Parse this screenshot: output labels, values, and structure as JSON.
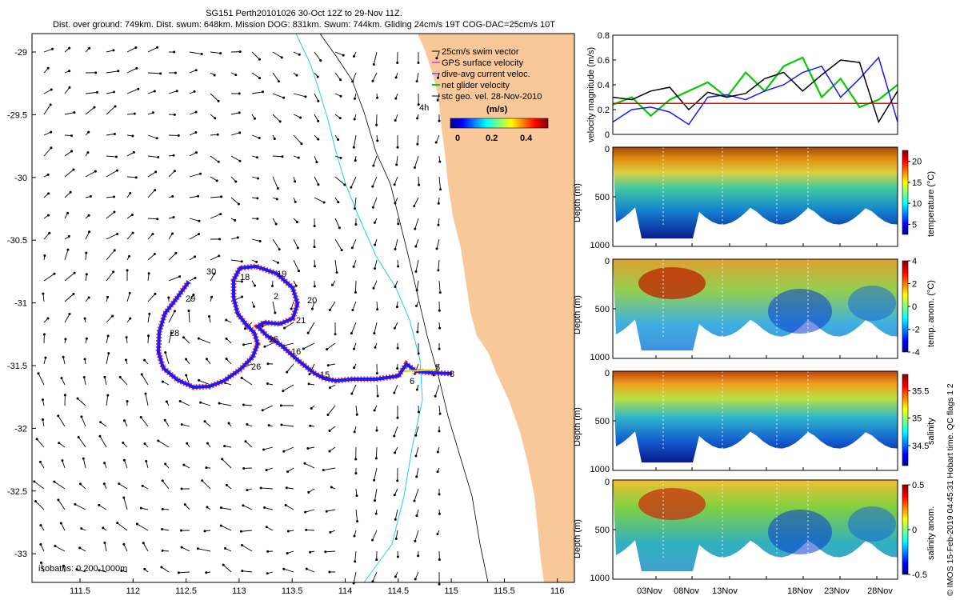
{
  "title": {
    "line1": "SG151 Perth20101026 30-Oct 12Z to 29-Nov 11Z.",
    "line2": "Dist. over ground: 749km. Dist. swum: 648km. Mission DOG: 831km. Swum: 744km. Gliding 24cm/s 19T COG-DAC=25cm/s 10T"
  },
  "colors": {
    "land": "#f9c89a",
    "track_blue": "#1a1aff",
    "track_red": "#ff1e00",
    "iso200": "#1ed2e6",
    "gps": "#b400ff",
    "net": "#00cc00",
    "mean_line": "#ee0000"
  },
  "map": {
    "x_ticks": [
      "111.5",
      "112",
      "112.5",
      "113",
      "113.5",
      "114",
      "114.5",
      "115",
      "115.5",
      "116"
    ],
    "y_ticks": [
      "-29",
      "-29.5",
      "-30",
      "-30.5",
      "-31",
      "-31.5",
      "-32",
      "-32.5",
      "-33"
    ],
    "legend": [
      {
        "symbol": "—",
        "label": "25cm/s swim vector"
      },
      {
        "symbol": "—",
        "label": "GPS surface velocity"
      },
      {
        "symbol": "—",
        "label": "dive-avg current veloc."
      },
      {
        "symbol": "—",
        "label": "net glider velocity"
      },
      {
        "symbol": "—",
        "label": "stc geo. vel. 28-Nov-2010"
      }
    ],
    "legend_extra": "4h",
    "colorbar_title": "(m/s)",
    "colorbar_ticks": [
      "0",
      "0.2",
      "0.4"
    ],
    "isobaths_label": "isobaths: 0   200  1000m",
    "track_labels": [
      "30",
      "18",
      "19",
      "2",
      "20",
      "21",
      "29",
      "28",
      "25",
      "16",
      "26",
      "15",
      "5",
      "6",
      "8"
    ]
  },
  "chart_data": [
    {
      "type": "line",
      "title": "",
      "xlabel": "",
      "ylabel": "velocity magnitude (m/s)",
      "ylim": [
        0,
        0.8
      ],
      "y_ticks": [
        "0",
        "0.2",
        "0.4",
        "0.6",
        "0.8"
      ],
      "x": [
        0,
        2,
        4,
        6,
        8,
        10,
        12,
        14,
        16,
        18,
        20,
        22,
        24,
        26,
        28,
        30
      ],
      "series": [
        {
          "name": "net glider velocity",
          "values": [
            0.24,
            0.3,
            0.15,
            0.28,
            0.35,
            0.42,
            0.3,
            0.5,
            0.35,
            0.55,
            0.62,
            0.3,
            0.45,
            0.22,
            0.28,
            0.4
          ]
        },
        {
          "name": "dive-avg current veloc.",
          "values": [
            0.1,
            0.2,
            0.22,
            0.18,
            0.08,
            0.3,
            0.32,
            0.28,
            0.35,
            0.4,
            0.5,
            0.55,
            0.3,
            0.45,
            0.62,
            0.1
          ]
        },
        {
          "name": "stc geo. vel.",
          "values": [
            0.3,
            0.28,
            0.35,
            0.38,
            0.2,
            0.34,
            0.3,
            0.33,
            0.45,
            0.5,
            0.35,
            0.48,
            0.6,
            0.58,
            0.1,
            0.35
          ]
        },
        {
          "name": "mean",
          "values": [
            0.25,
            0.25,
            0.25,
            0.25,
            0.25,
            0.25,
            0.25,
            0.25,
            0.25,
            0.25,
            0.25,
            0.25,
            0.25,
            0.25,
            0.25,
            0.25
          ]
        }
      ]
    },
    {
      "type": "heatmap",
      "ylabel": "Depth (m)",
      "y_ticks": [
        "0",
        "500",
        "1000"
      ],
      "colorbar_label": "temperature (°C)",
      "colorbar_ticks": [
        "20",
        "15",
        "10",
        "5"
      ]
    },
    {
      "type": "heatmap",
      "ylabel": "Depth (m)",
      "y_ticks": [
        "0",
        "500",
        "1000"
      ],
      "colorbar_label": "temp. anom. (°C)",
      "colorbar_ticks": [
        "4",
        "2",
        "0",
        "-2",
        "-4"
      ]
    },
    {
      "type": "heatmap",
      "ylabel": "Depth (m)",
      "y_ticks": [
        "0",
        "500",
        "1000"
      ],
      "colorbar_label": "salinity",
      "colorbar_ticks": [
        "35.5",
        "35",
        "34.5"
      ]
    },
    {
      "type": "heatmap",
      "ylabel": "Depth (m)",
      "y_ticks": [
        "0",
        "500",
        "1000"
      ],
      "colorbar_label": "salinity anom.",
      "colorbar_ticks": [
        "0.5",
        "0",
        "-0.5"
      ]
    }
  ],
  "time_ticks": [
    "03Nov",
    "08Nov",
    "13Nov",
    "18Nov",
    "23Nov",
    "28Nov"
  ],
  "watermark": "© IMOS 15-Feb-2019 04:45:31 Hobart time. QC flags 1 2"
}
